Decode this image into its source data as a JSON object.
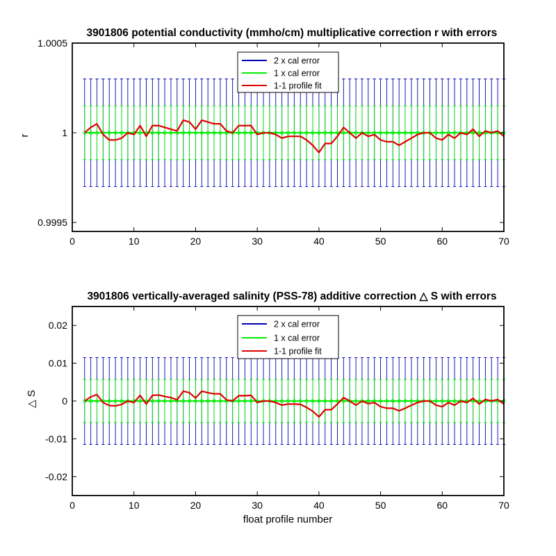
{
  "colors": {
    "blue": "#0000b4",
    "green": "#00ee00",
    "red": "#e00000",
    "axis": "#000000",
    "background": "#ffffff"
  },
  "chart_data": [
    {
      "type": "line",
      "title": "3901806 potential conductivity (mmho/cm) multiplicative correction r with errors",
      "xlabel": "",
      "ylabel": "r",
      "xlim": [
        0,
        70
      ],
      "ylim": [
        0.99945,
        1.0005
      ],
      "xticks": [
        0,
        10,
        20,
        30,
        40,
        50,
        60,
        70
      ],
      "xtick_labels": [
        "0",
        "10",
        "20",
        "30",
        "40",
        "50",
        "60",
        "70"
      ],
      "yticks": [
        0.9995,
        1,
        1.0005
      ],
      "ytick_labels": [
        "0.9995",
        "1",
        "1.0005"
      ],
      "grid": false,
      "legend_position": "top-center",
      "legend": [
        "2 x cal error",
        "1 x cal error",
        "1-1 profile fit"
      ],
      "errorbar_x": [
        2,
        3,
        4,
        5,
        6,
        7,
        8,
        9,
        10,
        11,
        12,
        13,
        14,
        15,
        16,
        17,
        18,
        19,
        20,
        21,
        22,
        23,
        24,
        25,
        26,
        27,
        28,
        29,
        30,
        31,
        32,
        33,
        34,
        35,
        36,
        37,
        38,
        39,
        40,
        41,
        42,
        43,
        44,
        45,
        46,
        47,
        48,
        49,
        50,
        51,
        52,
        53,
        54,
        55,
        56,
        57,
        58,
        59,
        60,
        61,
        62,
        63,
        64,
        65,
        66,
        67,
        68,
        69,
        70
      ],
      "center": 1.0,
      "error_2x": 0.0003,
      "error_1x": 0.00015,
      "fit_x": [
        2,
        3,
        4,
        5,
        6,
        7,
        8,
        9,
        10,
        11,
        12,
        13,
        14,
        15,
        16,
        17,
        18,
        19,
        20,
        21,
        22,
        23,
        24,
        25,
        26,
        27,
        28,
        29,
        30,
        31,
        32,
        33,
        34,
        35,
        36,
        37,
        38,
        39,
        40,
        41,
        42,
        43,
        44,
        45,
        46,
        47,
        48,
        49,
        50,
        51,
        52,
        53,
        54,
        55,
        56,
        57,
        58,
        59,
        60,
        61,
        62,
        63,
        64,
        65,
        66,
        67,
        68,
        69,
        70
      ],
      "fit_y": [
        1.0,
        1.00003,
        1.00005,
        0.99999,
        0.99996,
        0.99996,
        0.99997,
        1.0,
        0.99999,
        1.00004,
        0.99998,
        1.00004,
        1.00004,
        1.00003,
        1.00002,
        1.00001,
        1.00007,
        1.00006,
        1.00002,
        1.00007,
        1.00006,
        1.00005,
        1.00005,
        1.00001,
        1.0,
        1.00004,
        1.00004,
        1.00004,
        0.99999,
        1.0,
        1.0,
        0.99999,
        0.99997,
        0.99998,
        0.99998,
        0.99998,
        0.99996,
        0.99993,
        0.99989,
        0.99994,
        0.99994,
        0.99998,
        1.00003,
        1.0,
        0.99997,
        1.0,
        0.99998,
        0.99999,
        0.99996,
        0.99995,
        0.99995,
        0.99993,
        0.99995,
        0.99997,
        0.99999,
        1.0,
        1.0,
        0.99997,
        0.99996,
        0.99999,
        0.99997,
        1.0,
        0.99999,
        1.00002,
        0.99998,
        1.00001,
        1.0,
        1.00001,
        0.99998
      ]
    },
    {
      "type": "line",
      "title": "3901806 vertically-averaged salinity (PSS-78) additive correction △ S with errors",
      "xlabel": "float profile number",
      "ylabel": "△ S",
      "xlim": [
        0,
        70
      ],
      "ylim": [
        -0.025,
        0.025
      ],
      "xticks": [
        0,
        10,
        20,
        30,
        40,
        50,
        60,
        70
      ],
      "xtick_labels": [
        "0",
        "10",
        "20",
        "30",
        "40",
        "50",
        "60",
        "70"
      ],
      "yticks": [
        -0.02,
        -0.01,
        0,
        0.01,
        0.02
      ],
      "ytick_labels": [
        "-0.02",
        "-0.01",
        "0",
        "0.01",
        "0.02"
      ],
      "grid": false,
      "legend_position": "top-center",
      "legend": [
        "2 x cal error",
        "1 x cal error",
        "1-1 profile fit"
      ],
      "errorbar_x": [
        2,
        3,
        4,
        5,
        6,
        7,
        8,
        9,
        10,
        11,
        12,
        13,
        14,
        15,
        16,
        17,
        18,
        19,
        20,
        21,
        22,
        23,
        24,
        25,
        26,
        27,
        28,
        29,
        30,
        31,
        32,
        33,
        34,
        35,
        36,
        37,
        38,
        39,
        40,
        41,
        42,
        43,
        44,
        45,
        46,
        47,
        48,
        49,
        50,
        51,
        52,
        53,
        54,
        55,
        56,
        57,
        58,
        59,
        60,
        61,
        62,
        63,
        64,
        65,
        66,
        67,
        68,
        69,
        70
      ],
      "center": 0.0,
      "error_2x": 0.0115,
      "error_1x": 0.0057,
      "fit_x": [
        2,
        3,
        4,
        5,
        6,
        7,
        8,
        9,
        10,
        11,
        12,
        13,
        14,
        15,
        16,
        17,
        18,
        19,
        20,
        21,
        22,
        23,
        24,
        25,
        26,
        27,
        28,
        29,
        30,
        31,
        32,
        33,
        34,
        35,
        36,
        37,
        38,
        39,
        40,
        41,
        42,
        43,
        44,
        45,
        46,
        47,
        48,
        49,
        50,
        51,
        52,
        53,
        54,
        55,
        56,
        57,
        58,
        59,
        60,
        61,
        62,
        63,
        64,
        65,
        66,
        67,
        68,
        69,
        70
      ],
      "fit_y": [
        0.0,
        0.0011,
        0.0017,
        -0.0004,
        -0.0012,
        -0.0013,
        -0.0009,
        0.0,
        -0.0004,
        0.0015,
        -0.0008,
        0.0015,
        0.0016,
        0.0012,
        0.0009,
        0.0003,
        0.0026,
        0.0022,
        0.0008,
        0.0026,
        0.0022,
        0.0019,
        0.0019,
        0.0003,
        0.0,
        0.0014,
        0.0014,
        0.0015,
        -0.0004,
        0.0,
        0.0,
        -0.0004,
        -0.0011,
        -0.0008,
        -0.0008,
        -0.0009,
        -0.0017,
        -0.0027,
        -0.0042,
        -0.0023,
        -0.0023,
        -0.0008,
        0.0009,
        0.0,
        -0.0011,
        0.0,
        -0.0007,
        -0.0004,
        -0.0015,
        -0.0019,
        -0.0019,
        -0.0026,
        -0.0019,
        -0.0011,
        -0.0004,
        0.0,
        0.0,
        -0.0011,
        -0.0015,
        -0.0004,
        -0.0011,
        0.0,
        -0.0004,
        0.0007,
        -0.0008,
        0.0004,
        0.0,
        0.0004,
        -0.0008
      ]
    }
  ]
}
